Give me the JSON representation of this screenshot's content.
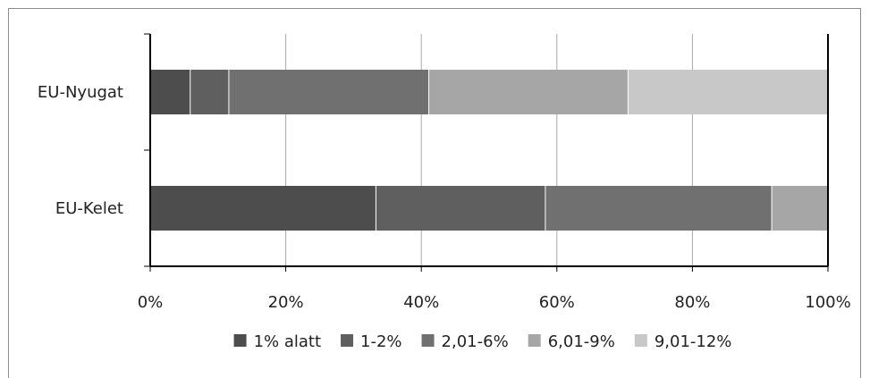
{
  "chart_data": {
    "type": "bar",
    "orientation": "horizontal",
    "stacked": "percent",
    "categories": [
      "EU-Nyugat",
      "EU-Kelet"
    ],
    "series": [
      {
        "name": "1% alatt",
        "color": "#4d4d4d",
        "values": [
          5.9,
          33.3
        ]
      },
      {
        "name": "1-2%",
        "color": "#5f5f5f",
        "values": [
          5.7,
          25.0
        ]
      },
      {
        "name": "2,01-6%",
        "color": "#707070",
        "values": [
          29.5,
          33.4
        ]
      },
      {
        "name": "6,01-9%",
        "color": "#a6a6a6",
        "values": [
          29.4,
          8.3
        ]
      },
      {
        "name": "9,01-12%",
        "color": "#c8c8c8",
        "values": [
          29.5,
          0
        ]
      }
    ],
    "xlim": [
      0,
      100
    ],
    "xticks": [
      "0%",
      "20%",
      "40%",
      "60%",
      "80%",
      "100%"
    ],
    "grid": "vertical",
    "legend": "bottom"
  }
}
